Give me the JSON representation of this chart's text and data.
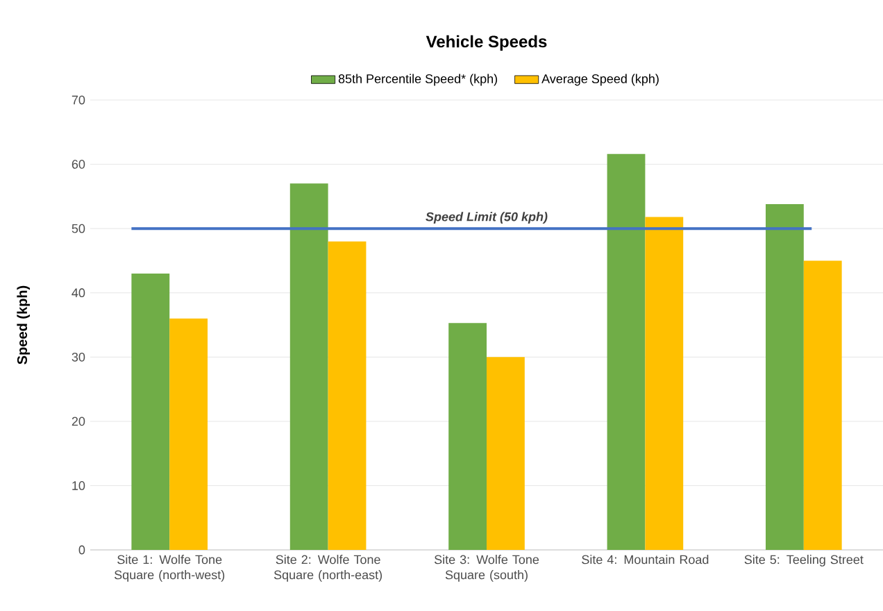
{
  "chart_data": {
    "type": "bar",
    "title": "Vehicle Speeds",
    "ylabel": "Speed (kph)",
    "categories": [
      "Site 1: Wolfe Tone Square (north-west)",
      "Site 2: Wolfe Tone Square (north-east)",
      "Site 3: Wolfe Tone Square (south)",
      "Site 4: Mountain Road",
      "Site 5: Teeling Street"
    ],
    "series": [
      {
        "name": "85th Percentile Speed* (kph)",
        "color": "#70ad47",
        "values": [
          43,
          57,
          35.3,
          61.6,
          53.8
        ]
      },
      {
        "name": "Average Speed (kph)",
        "color": "#ffc000",
        "values": [
          36,
          48,
          30,
          51.8,
          45
        ]
      }
    ],
    "ylim": [
      0,
      70
    ],
    "yticks": [
      0,
      10,
      20,
      30,
      40,
      50,
      60,
      70
    ],
    "grid": "y",
    "legend": "top",
    "ref_lines": [
      {
        "axis": "y",
        "value": 50,
        "label": "Speed Limit (50 kph)",
        "color": "#4472c4"
      }
    ]
  }
}
